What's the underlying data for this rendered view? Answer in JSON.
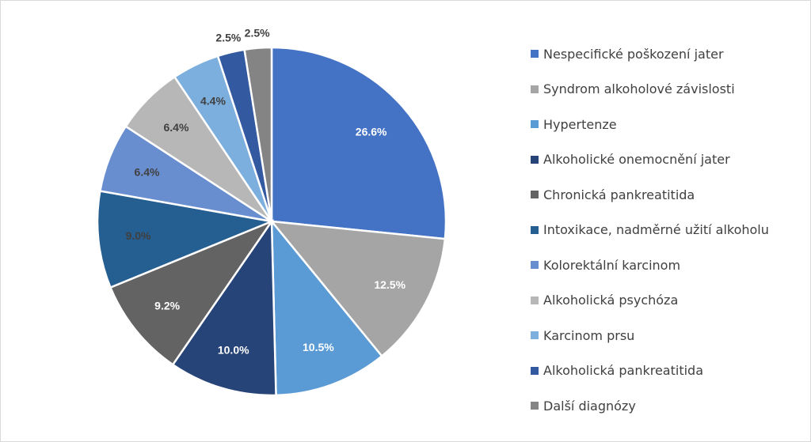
{
  "chart_data": {
    "type": "pie",
    "title": "",
    "categories": [
      "Nespecifické poškození jater",
      "Syndrom alkoholové závislosti",
      "Hypertenze",
      "Alkoholické onemocnění jater",
      "Chronická pankreatitida",
      "Intoxikace, nadměrné užití alkoholu",
      "Kolorektální karcinom",
      "Alkoholická psychóza",
      "Karcinom prsu",
      "Alkoholická pankreatitida",
      "Další diagnózy"
    ],
    "values": [
      26.6,
      12.5,
      10.5,
      10.0,
      9.2,
      9.0,
      6.4,
      6.4,
      4.4,
      2.5,
      2.5
    ],
    "data_labels": [
      "26.6%",
      "12.5%",
      "10.5%",
      "10.0%",
      "9.2%",
      "9.0%",
      "6.4%",
      "6.4%",
      "4.4%",
      "2.5%",
      "2.5%"
    ],
    "colors": [
      "#4472C4",
      "#A5A5A5",
      "#5B9BD5",
      "#264478",
      "#636363",
      "#255E91",
      "#698ED0",
      "#B7B7B7",
      "#7CAFDD",
      "#335AA1",
      "#848484"
    ],
    "label_colors": [
      "#ffffff",
      "#ffffff",
      "#ffffff",
      "#ffffff",
      "#ffffff",
      "#404040",
      "#404040",
      "#404040",
      "#404040",
      "#404040",
      "#404040"
    ],
    "legend_position": "right"
  }
}
